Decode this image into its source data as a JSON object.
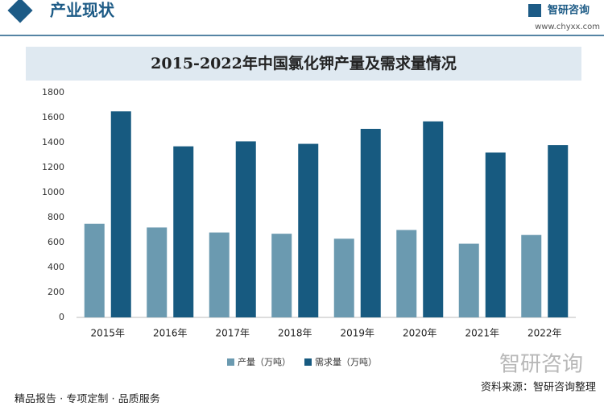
{
  "header": {
    "section": "产业现状",
    "logo_name": "智研咨询",
    "logo_url": "www.chyxx.com"
  },
  "chart_data": {
    "type": "bar",
    "title": "2015-2022年中国氯化钾产量及需求量情况",
    "categories": [
      "2015年",
      "2016年",
      "2017年",
      "2018年",
      "2019年",
      "2020年",
      "2021年",
      "2022年"
    ],
    "series": [
      {
        "name": "产量（万吨）",
        "color": "#6b9ab0",
        "values": [
          750,
          720,
          680,
          670,
          630,
          700,
          590,
          660
        ]
      },
      {
        "name": "需求量（万吨）",
        "color": "#175a80",
        "values": [
          1650,
          1370,
          1410,
          1390,
          1510,
          1570,
          1320,
          1380
        ]
      }
    ],
    "ylim": [
      0,
      1800
    ],
    "yticks": [
      0,
      200,
      400,
      600,
      800,
      1000,
      1200,
      1400,
      1600,
      1800
    ]
  },
  "footer": {
    "logo": "智研咨询",
    "source": "资料来源：智研咨询整理",
    "slogan": "精品报告 · 专项定制 · 品质服务"
  }
}
